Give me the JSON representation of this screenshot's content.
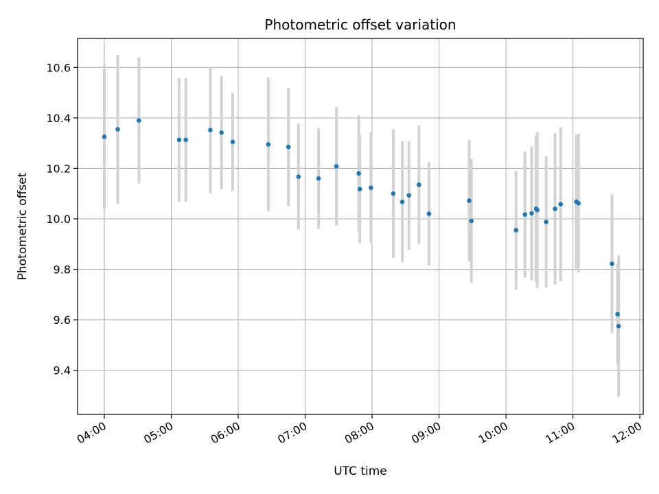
{
  "chart_data": {
    "type": "scatter",
    "title": "Photometric offset variation",
    "xlabel": "UTC time",
    "ylabel": "Photometric offset",
    "x_tick_labels": [
      "04:00",
      "05:00",
      "06:00",
      "07:00",
      "08:00",
      "09:00",
      "10:00",
      "11:00",
      "12:00"
    ],
    "y_tick_labels": [
      "9.4",
      "9.6",
      "9.8",
      "10.0",
      "10.2",
      "10.4",
      "10.6"
    ],
    "ylim": [
      9.225,
      10.715
    ],
    "xlim": [
      "03:36",
      "12:03"
    ],
    "grid": true,
    "series": [
      {
        "marker_color": "#1f77b4",
        "errorbar_color": "#d3d3d3",
        "points": [
          {
            "x": "04:00",
            "y": 10.325,
            "err": 0.285
          },
          {
            "x": "04:12",
            "y": 10.355,
            "err": 0.295
          },
          {
            "x": "04:31",
            "y": 10.39,
            "err": 0.25
          },
          {
            "x": "05:07",
            "y": 10.313,
            "err": 0.245
          },
          {
            "x": "05:13",
            "y": 10.313,
            "err": 0.245
          },
          {
            "x": "05:35",
            "y": 10.352,
            "err": 0.25
          },
          {
            "x": "05:45",
            "y": 10.342,
            "err": 0.225
          },
          {
            "x": "05:55",
            "y": 10.305,
            "err": 0.195
          },
          {
            "x": "06:27",
            "y": 10.295,
            "err": 0.265
          },
          {
            "x": "06:45",
            "y": 10.285,
            "err": 0.235
          },
          {
            "x": "06:54",
            "y": 10.167,
            "err": 0.21
          },
          {
            "x": "07:12",
            "y": 10.16,
            "err": 0.2
          },
          {
            "x": "07:28",
            "y": 10.208,
            "err": 0.235
          },
          {
            "x": "07:48",
            "y": 10.18,
            "err": 0.23
          },
          {
            "x": "07:49",
            "y": 10.118,
            "err": 0.215
          },
          {
            "x": "07:59",
            "y": 10.123,
            "err": 0.22
          },
          {
            "x": "08:19",
            "y": 10.1,
            "err": 0.255
          },
          {
            "x": "08:27",
            "y": 10.067,
            "err": 0.24
          },
          {
            "x": "08:33",
            "y": 10.093,
            "err": 0.215
          },
          {
            "x": "08:42",
            "y": 10.135,
            "err": 0.235
          },
          {
            "x": "08:51",
            "y": 10.02,
            "err": 0.205
          },
          {
            "x": "09:27",
            "y": 10.072,
            "err": 0.24
          },
          {
            "x": "09:29",
            "y": 9.992,
            "err": 0.245
          },
          {
            "x": "10:09",
            "y": 9.955,
            "err": 0.235
          },
          {
            "x": "10:17",
            "y": 10.017,
            "err": 0.25
          },
          {
            "x": "10:23",
            "y": 10.022,
            "err": 0.265
          },
          {
            "x": "10:27",
            "y": 10.04,
            "err": 0.29
          },
          {
            "x": "10:28",
            "y": 10.035,
            "err": 0.31
          },
          {
            "x": "10:36",
            "y": 9.988,
            "err": 0.26
          },
          {
            "x": "10:44",
            "y": 10.04,
            "err": 0.3
          },
          {
            "x": "10:49",
            "y": 10.058,
            "err": 0.305
          },
          {
            "x": "11:03",
            "y": 10.068,
            "err": 0.265
          },
          {
            "x": "11:05",
            "y": 10.062,
            "err": 0.275
          },
          {
            "x": "11:35",
            "y": 9.822,
            "err": 0.275
          },
          {
            "x": "11:40",
            "y": 9.622,
            "err": 0.2
          },
          {
            "x": "11:41",
            "y": 9.575,
            "err": 0.28
          }
        ]
      }
    ]
  }
}
